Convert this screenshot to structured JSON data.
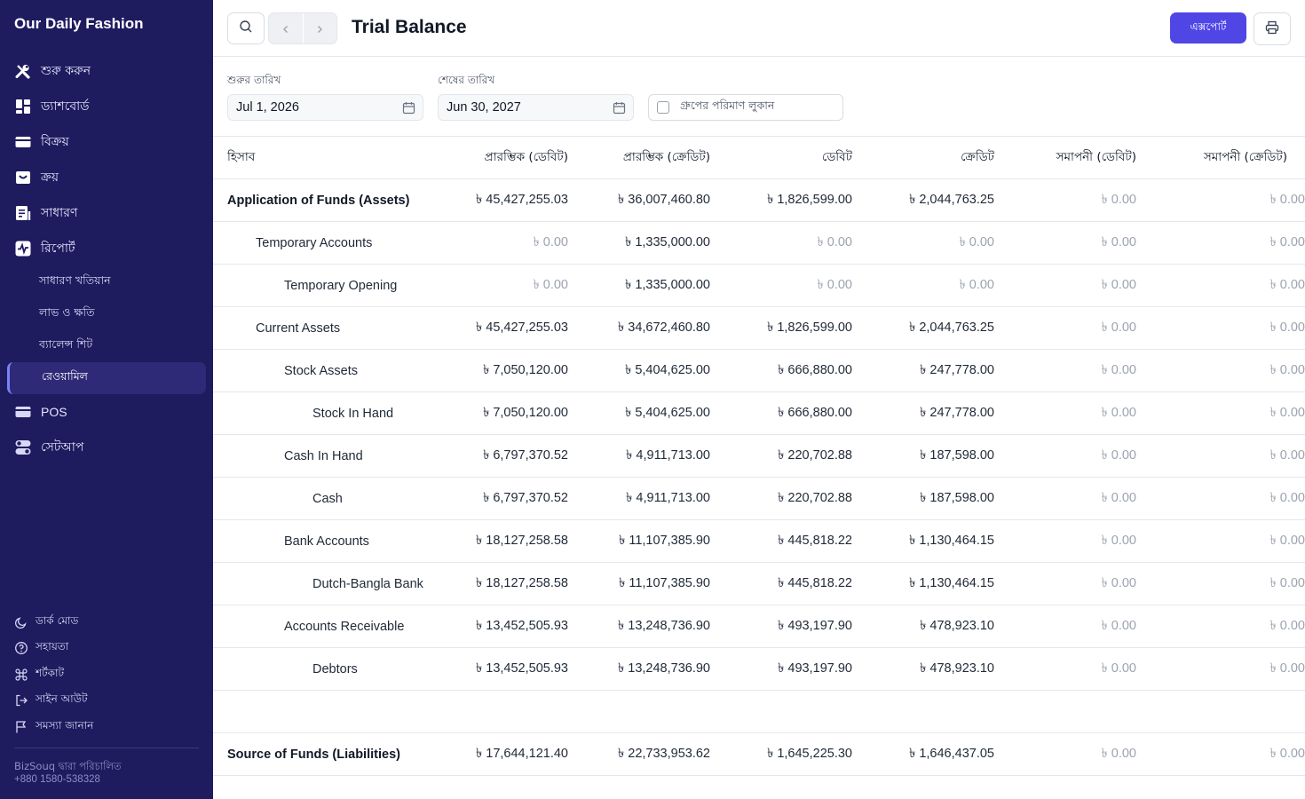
{
  "app": {
    "name": "Our Daily Fashion"
  },
  "sidebar": {
    "items": [
      {
        "label": "শুরু করুন",
        "icon": "tools-icon"
      },
      {
        "label": "ড্যাশবোর্ড",
        "icon": "dashboard-icon"
      },
      {
        "label": "বিক্রয়",
        "icon": "sales-icon"
      },
      {
        "label": "ক্রয়",
        "icon": "purchase-icon"
      },
      {
        "label": "সাধারণ",
        "icon": "journal-icon"
      },
      {
        "label": "রিপোর্ট",
        "icon": "report-icon"
      }
    ],
    "sub_items": [
      {
        "label": "সাধারণ খতিয়ান"
      },
      {
        "label": "লাভ ও ক্ষতি"
      },
      {
        "label": "ব্যালেন্স শিট"
      },
      {
        "label": "রেওয়ামিল",
        "active": true
      }
    ],
    "bottom_items": [
      {
        "label": "POS",
        "icon": "pos-icon"
      },
      {
        "label": "সেটআপ",
        "icon": "setup-icon"
      }
    ],
    "footer": [
      {
        "label": "ডার্ক মোড",
        "icon": "moon-icon"
      },
      {
        "label": "সহায়তা",
        "icon": "help-icon"
      },
      {
        "label": "শর্টকাট",
        "icon": "command-icon"
      },
      {
        "label": "সাইন আউট",
        "icon": "sign-out-icon"
      },
      {
        "label": "সমস্যা জানান",
        "icon": "flag-icon"
      }
    ],
    "powered_by": "BizSouq দ্বারা পরিচালিত",
    "phone": "+880 1580-538328"
  },
  "header": {
    "title": "Trial Balance",
    "export_label": "এক্সপোর্ট"
  },
  "filters": {
    "from_label": "শুরুর তারিখ",
    "from_value": "Jul 1, 2026",
    "to_label": "শেষের তারিখ",
    "to_value": "Jun 30, 2027",
    "hide_group_label": "গ্রুপের পরিমাণ লুকান"
  },
  "colors": {
    "sidebar_bg": "#1e1b5e",
    "accent": "#4f46e5"
  },
  "table": {
    "headers": [
      "হিসাব",
      "প্রারম্ভিক (ডেবিট)",
      "প্রারম্ভিক (ক্রেডিট)",
      "ডেবিট",
      "ক্রেডিট",
      "সমাপনী (ডেবিট)",
      "সমাপনী (ক্রেডিট)"
    ],
    "rows": [
      {
        "account": "Application of Funds (Assets)",
        "level": 0,
        "group": true,
        "values": [
          "৳ 45,427,255.03",
          "৳ 36,007,460.80",
          "৳ 1,826,599.00",
          "৳ 2,044,763.25",
          "৳ 0.00",
          "৳ 0.00"
        ]
      },
      {
        "account": "Temporary Accounts",
        "level": 1,
        "values": [
          "৳ 0.00",
          "৳ 1,335,000.00",
          "৳ 0.00",
          "৳ 0.00",
          "৳ 0.00",
          "৳ 0.00"
        ]
      },
      {
        "account": "Temporary Opening",
        "level": 2,
        "values": [
          "৳ 0.00",
          "৳ 1,335,000.00",
          "৳ 0.00",
          "৳ 0.00",
          "৳ 0.00",
          "৳ 0.00"
        ]
      },
      {
        "account": "Current Assets",
        "level": 1,
        "values": [
          "৳ 45,427,255.03",
          "৳ 34,672,460.80",
          "৳ 1,826,599.00",
          "৳ 2,044,763.25",
          "৳ 0.00",
          "৳ 0.00"
        ]
      },
      {
        "account": "Stock Assets",
        "level": 2,
        "values": [
          "৳ 7,050,120.00",
          "৳ 5,404,625.00",
          "৳ 666,880.00",
          "৳ 247,778.00",
          "৳ 0.00",
          "৳ 0.00"
        ]
      },
      {
        "account": "Stock In Hand",
        "level": 3,
        "values": [
          "৳ 7,050,120.00",
          "৳ 5,404,625.00",
          "৳ 666,880.00",
          "৳ 247,778.00",
          "৳ 0.00",
          "৳ 0.00"
        ]
      },
      {
        "account": "Cash In Hand",
        "level": 2,
        "values": [
          "৳ 6,797,370.52",
          "৳ 4,911,713.00",
          "৳ 220,702.88",
          "৳ 187,598.00",
          "৳ 0.00",
          "৳ 0.00"
        ]
      },
      {
        "account": "Cash",
        "level": 3,
        "values": [
          "৳ 6,797,370.52",
          "৳ 4,911,713.00",
          "৳ 220,702.88",
          "৳ 187,598.00",
          "৳ 0.00",
          "৳ 0.00"
        ]
      },
      {
        "account": "Bank Accounts",
        "level": 2,
        "values": [
          "৳ 18,127,258.58",
          "৳ 11,107,385.90",
          "৳ 445,818.22",
          "৳ 1,130,464.15",
          "৳ 0.00",
          "৳ 0.00"
        ]
      },
      {
        "account": "Dutch-Bangla Bank",
        "level": 3,
        "values": [
          "৳ 18,127,258.58",
          "৳ 11,107,385.90",
          "৳ 445,818.22",
          "৳ 1,130,464.15",
          "৳ 0.00",
          "৳ 0.00"
        ]
      },
      {
        "account": "Accounts Receivable",
        "level": 2,
        "values": [
          "৳ 13,452,505.93",
          "৳ 13,248,736.90",
          "৳ 493,197.90",
          "৳ 478,923.10",
          "৳ 0.00",
          "৳ 0.00"
        ]
      },
      {
        "account": "Debtors",
        "level": 3,
        "values": [
          "৳ 13,452,505.93",
          "৳ 13,248,736.90",
          "৳ 493,197.90",
          "৳ 478,923.10",
          "৳ 0.00",
          "৳ 0.00"
        ]
      },
      {
        "spacer": true
      },
      {
        "account": "Source of Funds (Liabilities)",
        "level": 0,
        "group": true,
        "values": [
          "৳ 17,644,121.40",
          "৳ 22,733,953.62",
          "৳ 1,645,225.30",
          "৳ 1,646,437.05",
          "৳ 0.00",
          "৳ 0.00"
        ]
      }
    ]
  }
}
